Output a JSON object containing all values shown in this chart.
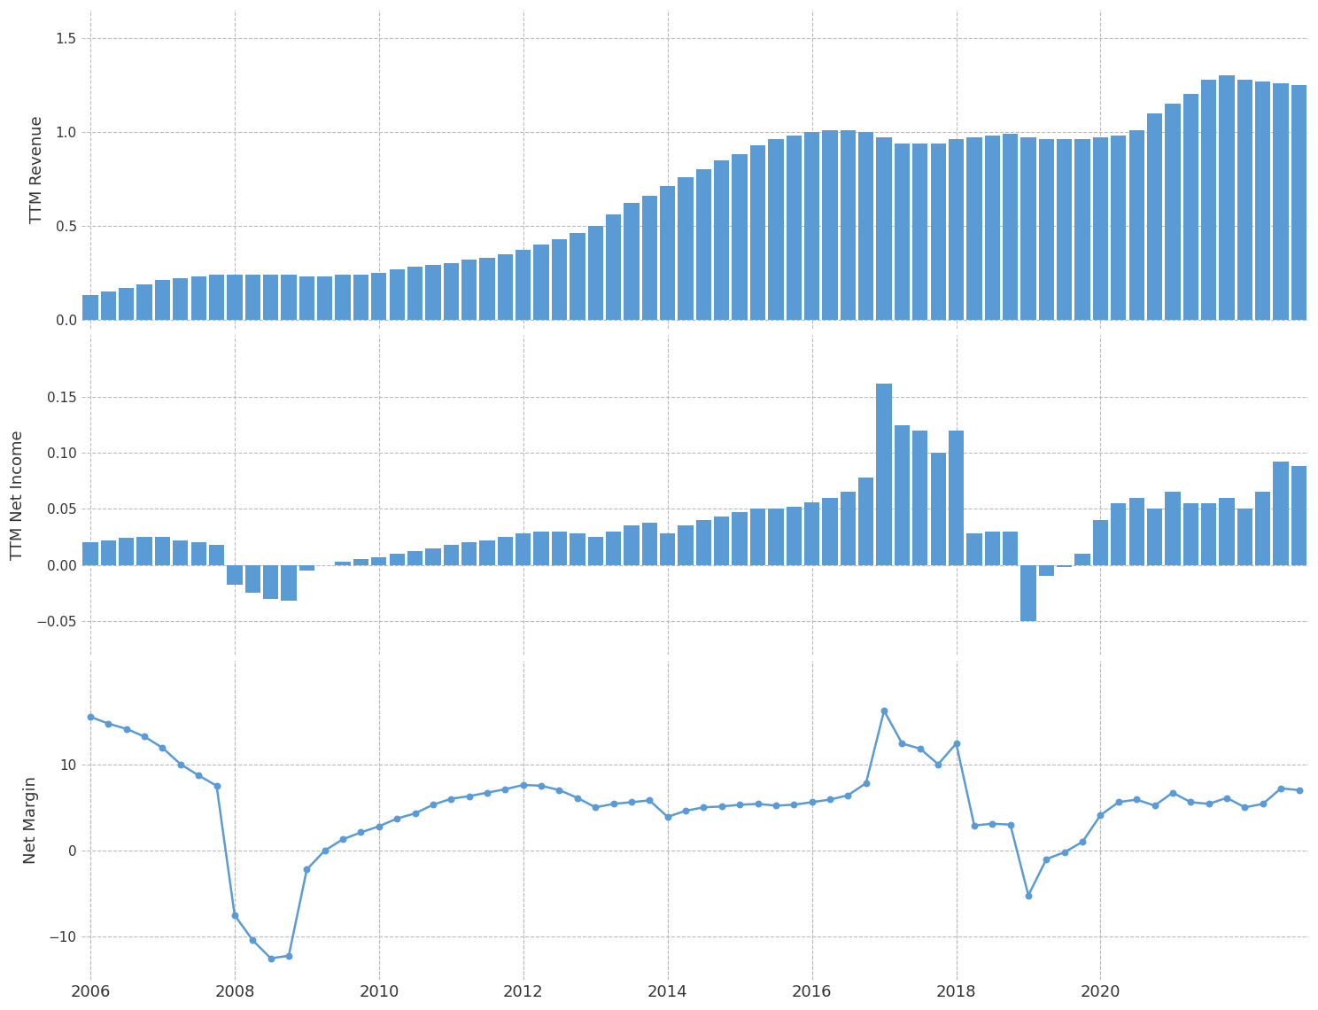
{
  "revenue": [
    0.13,
    0.15,
    0.17,
    0.19,
    0.21,
    0.22,
    0.23,
    0.24,
    0.24,
    0.24,
    0.24,
    0.24,
    0.23,
    0.23,
    0.24,
    0.24,
    0.25,
    0.27,
    0.28,
    0.29,
    0.3,
    0.32,
    0.33,
    0.35,
    0.37,
    0.4,
    0.43,
    0.46,
    0.5,
    0.56,
    0.62,
    0.66,
    0.71,
    0.76,
    0.8,
    0.85,
    0.88,
    0.93,
    0.96,
    0.98,
    1.0,
    1.01,
    1.01,
    1.0,
    0.97,
    0.94,
    0.94,
    0.94,
    0.96,
    0.97,
    0.98,
    0.99,
    0.97,
    0.96,
    0.96,
    0.96,
    0.97,
    0.98,
    1.01,
    1.1,
    1.15,
    1.2,
    1.28,
    1.3,
    1.28,
    1.27,
    1.26,
    1.25
  ],
  "net_income": [
    0.02,
    0.022,
    0.024,
    0.025,
    0.025,
    0.022,
    0.02,
    0.018,
    -0.018,
    -0.025,
    -0.03,
    -0.032,
    -0.005,
    0.0,
    0.003,
    0.005,
    0.007,
    0.01,
    0.012,
    0.015,
    0.018,
    0.02,
    0.022,
    0.025,
    0.028,
    0.03,
    0.03,
    0.028,
    0.025,
    0.03,
    0.035,
    0.038,
    0.028,
    0.035,
    0.04,
    0.043,
    0.047,
    0.05,
    0.05,
    0.052,
    0.056,
    0.06,
    0.065,
    0.078,
    0.162,
    0.125,
    0.12,
    0.1,
    0.12,
    0.028,
    0.03,
    0.03,
    -0.05,
    -0.01,
    -0.002,
    0.01,
    0.04,
    0.055,
    0.06,
    0.05,
    0.065,
    0.055,
    0.055,
    0.06,
    0.05,
    0.065,
    0.092,
    0.088
  ],
  "net_margin": [
    15.5,
    14.7,
    14.1,
    13.2,
    11.9,
    10.0,
    8.7,
    7.5,
    -7.5,
    -10.4,
    -12.5,
    -12.2,
    -2.2,
    0.0,
    1.3,
    2.1,
    2.8,
    3.7,
    4.3,
    5.3,
    6.0,
    6.3,
    6.7,
    7.1,
    7.6,
    7.5,
    7.0,
    6.1,
    5.0,
    5.4,
    5.6,
    5.8,
    3.9,
    4.6,
    5.0,
    5.1,
    5.3,
    5.4,
    5.2,
    5.3,
    5.6,
    5.9,
    6.4,
    7.8,
    16.2,
    12.4,
    11.8,
    10.0,
    12.4,
    2.9,
    3.1,
    3.0,
    -5.2,
    -1.0,
    -0.2,
    1.0,
    4.1,
    5.6,
    5.9,
    5.2,
    6.7,
    5.6,
    5.4,
    6.1,
    5.0,
    5.4,
    7.2,
    7.0
  ],
  "x_start": 2006.0,
  "x_step": 0.25,
  "bar_color": "#5B9BD5",
  "line_color": "#5B9BD5",
  "background_color": "#FFFFFF",
  "grid_color": "#BBBBBB",
  "ylabel1": "TTM Revenue",
  "ylabel2": "TTM Net Income",
  "ylabel3": "Net Margin",
  "ylim1": [
    -0.05,
    1.65
  ],
  "yticks1": [
    0.0,
    0.5,
    1.0,
    1.5
  ],
  "ylim2": [
    -0.08,
    0.205
  ],
  "yticks2": [
    -0.05,
    0.0,
    0.05,
    0.1,
    0.15
  ],
  "ylim3": [
    -15,
    22
  ],
  "yticks3": [
    -10,
    0,
    10
  ],
  "xtick_years": [
    2006,
    2008,
    2010,
    2012,
    2014,
    2016,
    2018,
    2020
  ]
}
